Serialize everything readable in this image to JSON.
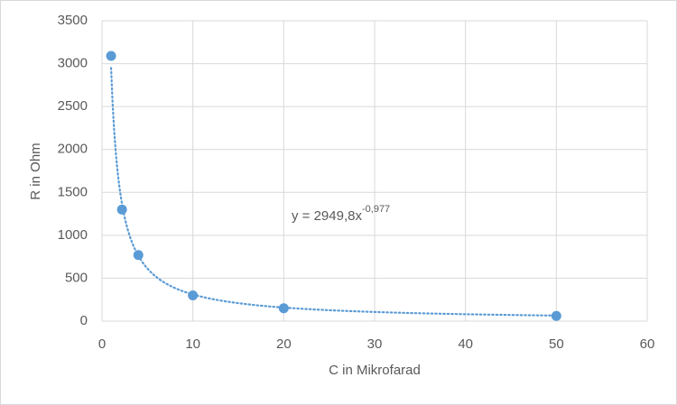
{
  "chart_data": {
    "type": "scatter",
    "x_label": "C in Mikrofarad",
    "y_label": "R in Ohm",
    "series": [
      {
        "name": "R",
        "color": "#5b9bd5",
        "x": [
          1,
          2.2,
          4,
          10,
          20,
          50
        ],
        "values": [
          3090,
          1300,
          770,
          300,
          150,
          60
        ]
      }
    ],
    "trendline": {
      "type": "power",
      "coefficient": 2949.8,
      "exponent": -0.977,
      "equation": "y = 2949,8x",
      "equation_exponent": "-0,977"
    },
    "xlim": [
      0,
      60
    ],
    "xticks": [
      0,
      10,
      20,
      30,
      40,
      50,
      60
    ],
    "ylim": [
      0,
      3500
    ],
    "yticks": [
      0,
      500,
      1000,
      1500,
      2000,
      2500,
      3000,
      3500
    ],
    "grid": true
  }
}
